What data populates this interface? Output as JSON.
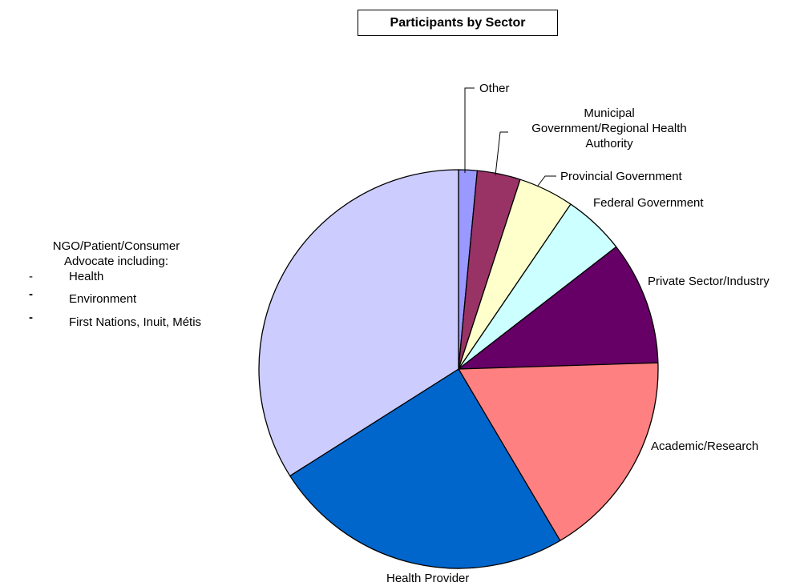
{
  "chart_data": {
    "type": "pie",
    "title": "Participants by Sector",
    "slices": [
      {
        "label": "Other",
        "value": 1.5,
        "color": "#9999FF"
      },
      {
        "label": "Municipal Government/Regional Health Authority",
        "value": 3.5,
        "color": "#993366"
      },
      {
        "label": "Provincial Government",
        "value": 4.5,
        "color": "#FFFFCC"
      },
      {
        "label": "Federal Government",
        "value": 5.0,
        "color": "#CCFFFF"
      },
      {
        "label": "Private Sector/Industry",
        "value": 10.0,
        "color": "#660066"
      },
      {
        "label": "Academic/Research",
        "value": 17.0,
        "color": "#FF8080"
      },
      {
        "label": "Health Provider",
        "value": 24.5,
        "color": "#0066CC"
      },
      {
        "label": "NGO/Patient/Consumer Advocate including:",
        "value": 34.0,
        "color": "#CCCCFF"
      }
    ],
    "ngo_subitems": [
      "Health",
      "Environment",
      "First Nations, Inuit, Métis"
    ]
  },
  "labels": {
    "other": "Other",
    "municipal_l1": "Municipal",
    "municipal_l2": "Government/Regional Health",
    "municipal_l3": "Authority",
    "provincial": "Provincial Government",
    "federal": "Federal Government",
    "private": "Private Sector/Industry",
    "academic": "Academic/Research",
    "health_provider": "Health Provider",
    "ngo_l1": "NGO/Patient/Consumer",
    "ngo_l2": "Advocate including:",
    "ngo_dash": "-"
  }
}
